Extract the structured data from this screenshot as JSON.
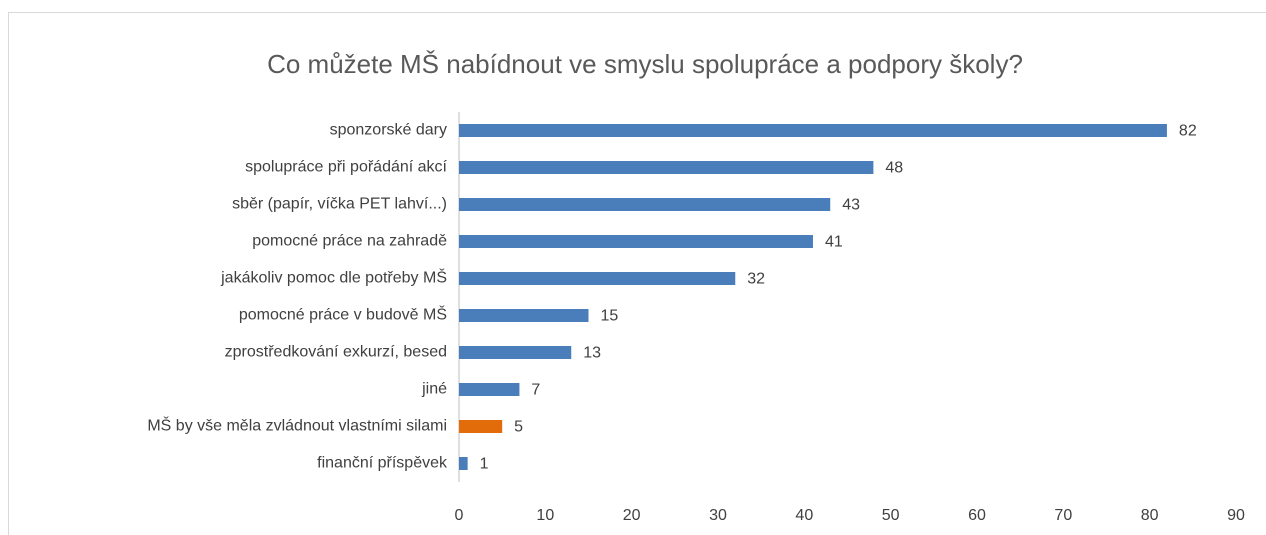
{
  "chart_data": {
    "type": "barh",
    "title": "Co můžete MŠ nabídnout ve smyslu spolupráce a podpory školy?",
    "categories": [
      "sponzorské dary",
      "spolupráce při pořádání akcí",
      "sběr (papír, víčka PET lahví...)",
      "pomocné práce na zahradě",
      "jakákoliv pomoc dle potřeby MŠ",
      "pomocné práce v budově MŠ",
      "zprostředkování exkurzí, besed",
      "jiné",
      "MŠ by vše měla zvládnout vlastními silami",
      "finanční příspěvek"
    ],
    "values": [
      82,
      48,
      43,
      41,
      32,
      15,
      13,
      7,
      5,
      1
    ],
    "colors": [
      "#4a7ebb",
      "#4a7ebb",
      "#4a7ebb",
      "#4a7ebb",
      "#4a7ebb",
      "#4a7ebb",
      "#4a7ebb",
      "#4a7ebb",
      "#e36c0a",
      "#4a7ebb"
    ],
    "xlim": [
      0,
      90
    ],
    "xticks": [
      0,
      10,
      20,
      30,
      40,
      50,
      60,
      70,
      80,
      90
    ],
    "grid": false
  }
}
